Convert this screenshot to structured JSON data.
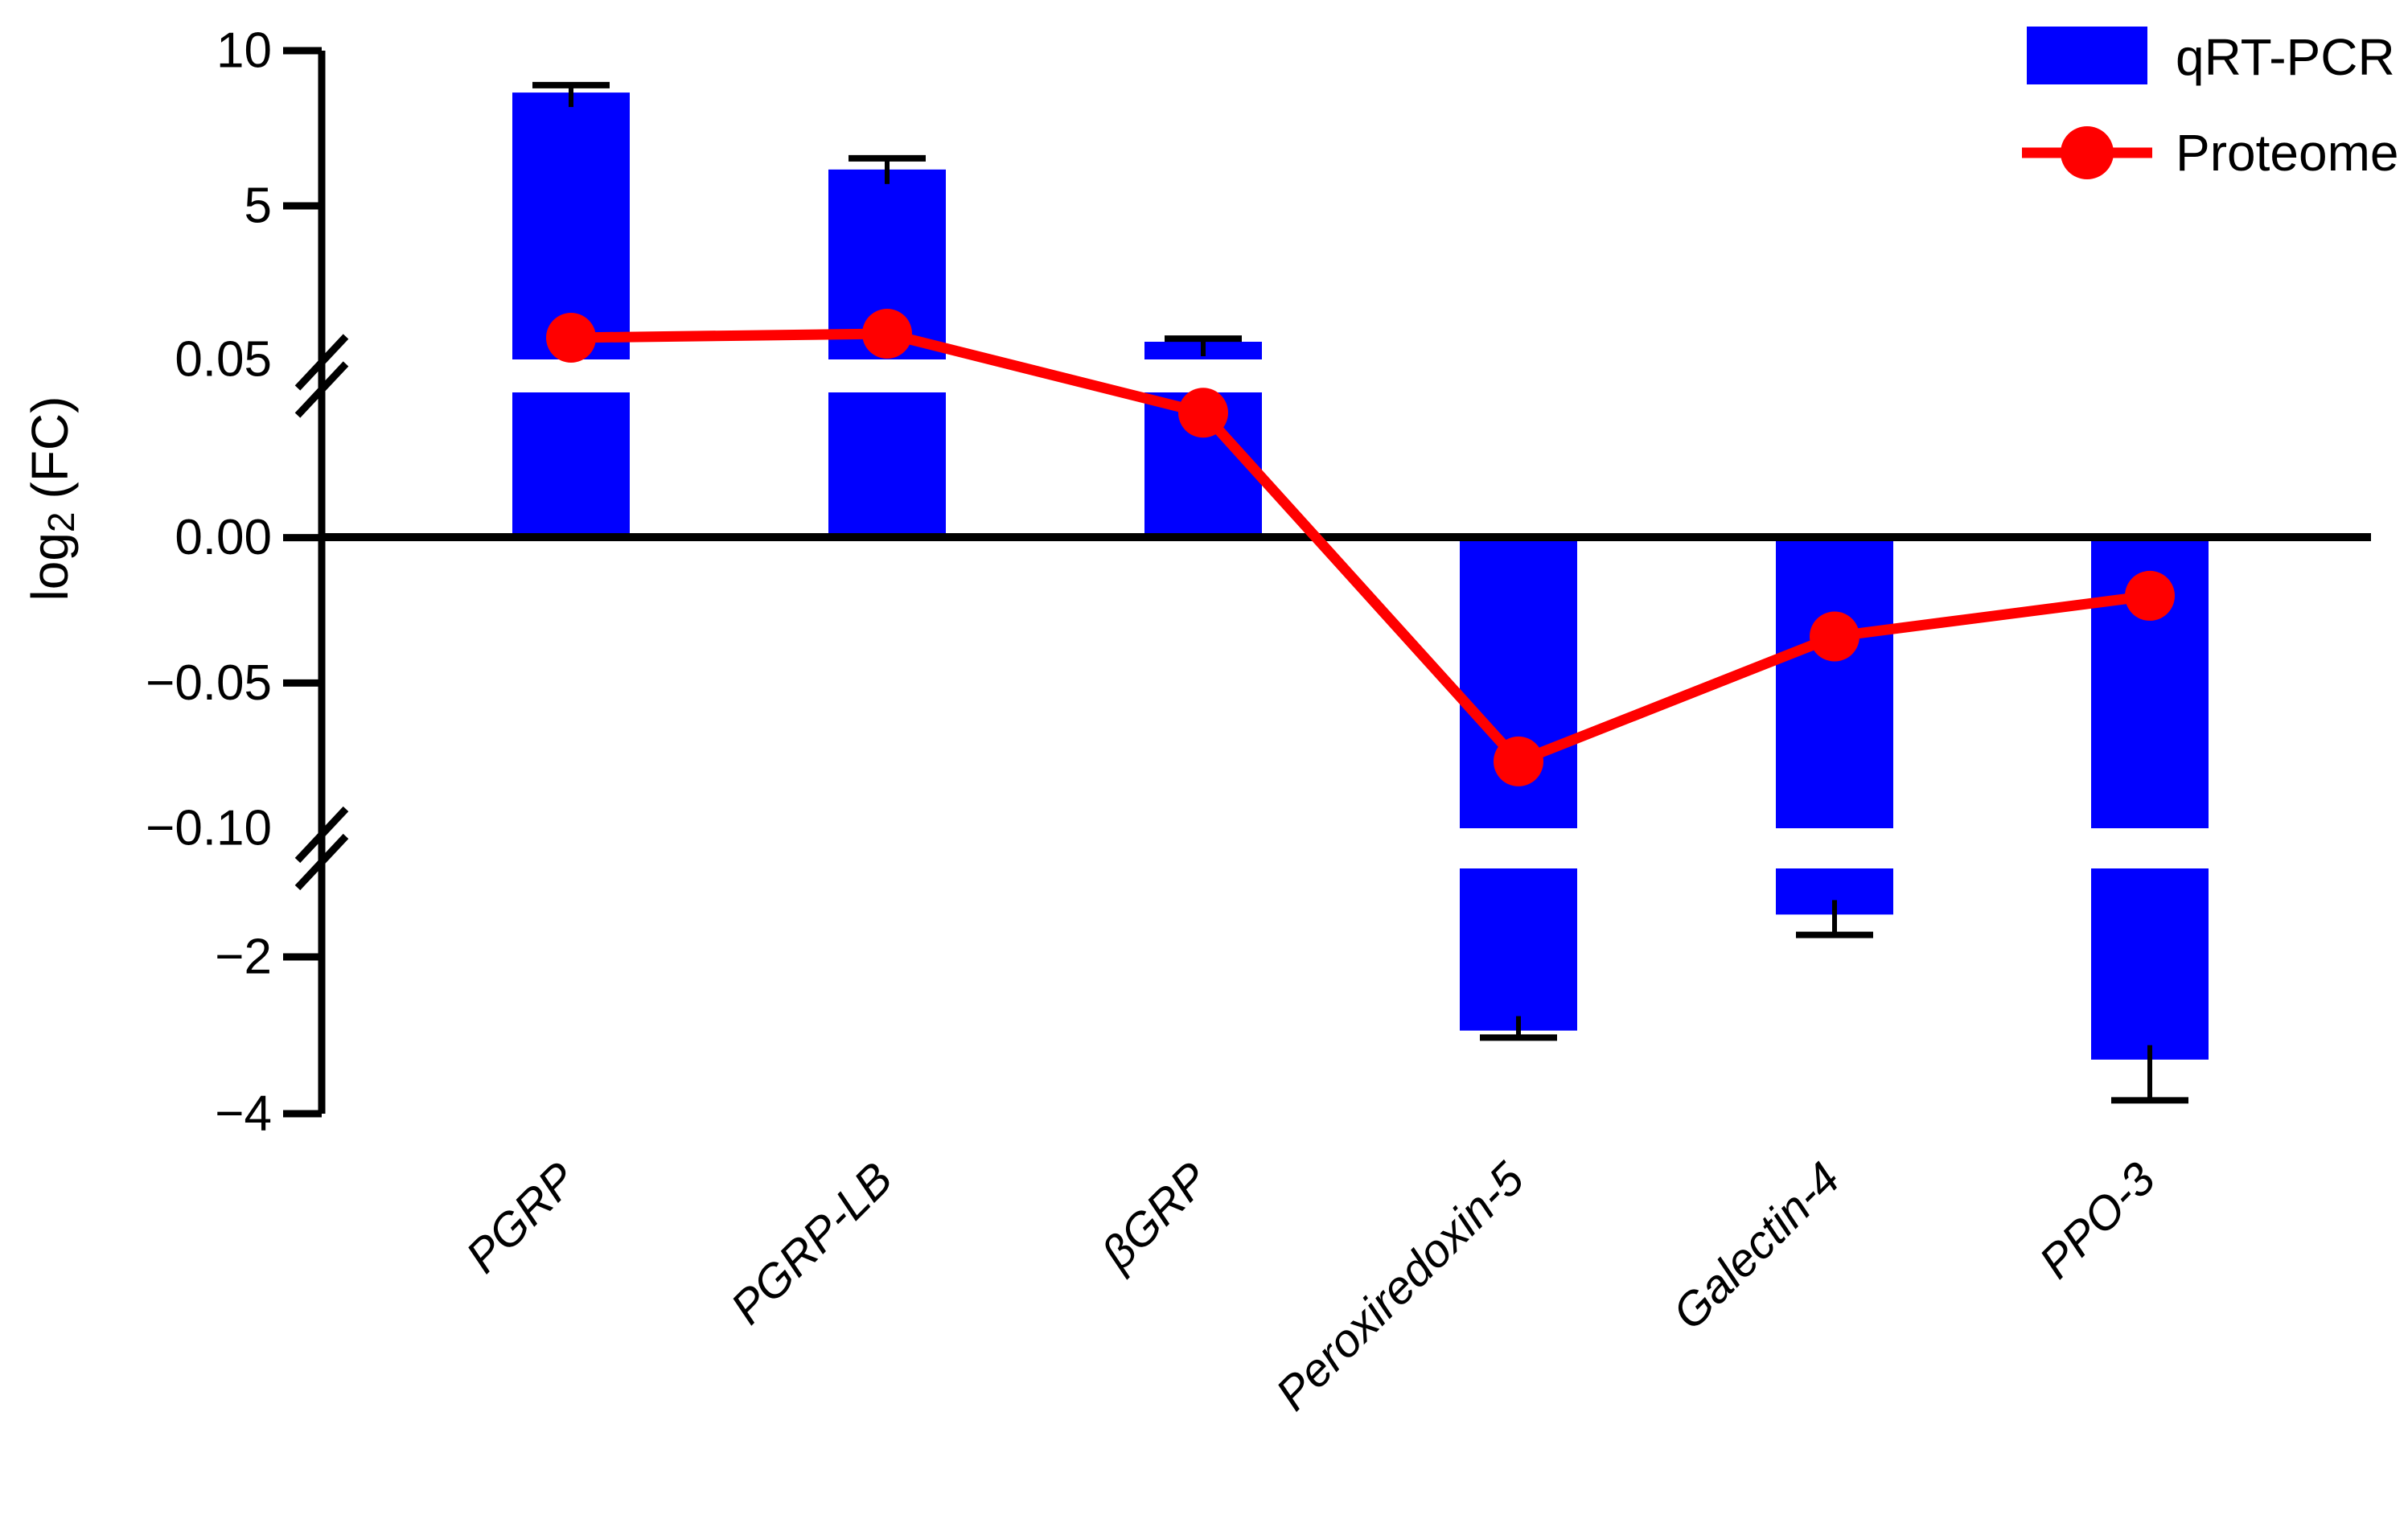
{
  "chart_data": {
    "type": "bar",
    "subtype": "bar-line-combo-broken-axis",
    "title": "",
    "xlabel": "",
    "ylabel": "log2 (FC)",
    "ylabel_parts": {
      "base": "log",
      "sub": "2",
      "rest": "(FC)"
    },
    "categories": [
      "PGRP",
      "PGRP-LB",
      "βGRP",
      "Peroxiredoxin-5",
      "Galectin-4",
      "PPO-3"
    ],
    "series": [
      {
        "name": "qRT-PCR",
        "type": "bar",
        "color": "#0000FF",
        "values": [
          8.65,
          6.17,
          0.62,
          -2.94,
          -1.46,
          -3.31
        ],
        "errors": [
          0.24,
          0.36,
          0.1,
          0.09,
          0.26,
          0.52
        ]
      },
      {
        "name": "Proteome",
        "type": "line",
        "color": "#FF0000",
        "values": [
          0.75,
          0.88,
          0.043,
          -0.077,
          -0.034,
          -0.02
        ]
      }
    ],
    "y_ticks": [
      {
        "value": 10,
        "label": "10",
        "tick": true
      },
      {
        "value": 5,
        "label": "5",
        "tick": true
      },
      {
        "value": 0.05,
        "label": "0.05",
        "tick": false
      },
      {
        "value": 0,
        "label": "0.00",
        "tick": true
      },
      {
        "value": -0.05,
        "label": "−0.05",
        "tick": true
      },
      {
        "value": -0.1,
        "label": "−0.10",
        "tick": false
      },
      {
        "value": -2,
        "label": "−2",
        "tick": true
      },
      {
        "value": -4,
        "label": "−4",
        "tick": true
      }
    ],
    "axis_breaks": [
      {
        "between_labels": [
          "5",
          "0.05"
        ]
      },
      {
        "between_labels": [
          "−0.10",
          "−2"
        ]
      }
    ],
    "ylim_segments": [
      [
        0.05,
        10
      ],
      [
        -0.1,
        0.05
      ],
      [
        -4,
        -0.87
      ]
    ],
    "grid": false,
    "legend_position": "top-right",
    "colors": {
      "bar": "#0000FF",
      "line": "#FF0000",
      "axis": "#000000",
      "background": "#FFFFFF"
    }
  }
}
